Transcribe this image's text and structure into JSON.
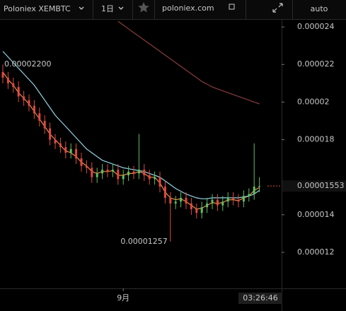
{
  "toolbar": {
    "symbol": "Poloniex XEMBTC",
    "interval": "1日",
    "site": "poloniex.com",
    "scale_mode": "auto"
  },
  "chart_data": {
    "type": "candlestick",
    "categories": [
      null,
      null,
      null,
      null,
      null,
      null,
      null,
      null,
      null,
      null,
      null,
      null,
      null,
      null,
      null,
      null,
      null,
      null,
      null,
      null,
      null,
      null,
      null,
      "9月",
      null,
      null,
      null,
      null,
      null,
      null,
      null,
      null,
      null,
      null,
      null,
      null,
      null,
      null,
      null,
      null,
      null,
      null,
      null,
      null,
      null,
      null,
      null,
      null,
      null,
      null
    ],
    "open": [
      2.16e-05,
      2.13e-05,
      2.1e-05,
      2.08e-05,
      2.03e-05,
      2.01e-05,
      1.98e-05,
      1.94e-05,
      1.9e-05,
      1.86e-05,
      1.8e-05,
      1.78e-05,
      1.76e-05,
      1.73e-05,
      1.75e-05,
      1.7e-05,
      1.66e-05,
      1.65e-05,
      1.6e-05,
      1.62e-05,
      1.64e-05,
      1.63e-05,
      1.64e-05,
      1.59e-05,
      1.61e-05,
      1.63e-05,
      1.62e-05,
      1.64e-05,
      1.61e-05,
      1.59e-05,
      1.6e-05,
      1.55e-05,
      1.49e-05,
      1.46e-05,
      1.47e-05,
      1.49e-05,
      1.46e-05,
      1.43e-05,
      1.41e-05,
      1.44e-05,
      1.46e-05,
      1.48e-05,
      1.45e-05,
      1.47e-05,
      1.49e-05,
      1.48e-05,
      1.47e-05,
      1.5e-05,
      1.51e-05,
      1.55e-05
    ],
    "high": [
      2.2e-05,
      2.16e-05,
      2.13e-05,
      2.11e-05,
      2.06e-05,
      2.04e-05,
      2.01e-05,
      1.97e-05,
      1.93e-05,
      1.89e-05,
      1.83e-05,
      1.81e-05,
      1.79e-05,
      1.78e-05,
      1.78e-05,
      1.73e-05,
      1.69e-05,
      1.68e-05,
      1.65e-05,
      1.67e-05,
      1.67e-05,
      1.67e-05,
      1.67e-05,
      1.64e-05,
      1.66e-05,
      1.66e-05,
      1.83e-05,
      1.67e-05,
      1.64e-05,
      1.63e-05,
      1.63e-05,
      1.58e-05,
      1.52e-05,
      1.5e-05,
      1.52e-05,
      1.52e-05,
      1.49e-05,
      1.46e-05,
      1.47e-05,
      1.49e-05,
      1.51e-05,
      1.51e-05,
      1.5e-05,
      1.52e-05,
      1.52e-05,
      1.51e-05,
      1.53e-05,
      1.54e-05,
      1.78e-05,
      1.6e-05
    ],
    "low": [
      2.1e-05,
      2.07e-05,
      2.05e-05,
      2e-05,
      1.98e-05,
      1.95e-05,
      1.91e-05,
      1.87e-05,
      1.83e-05,
      1.77e-05,
      1.75e-05,
      1.73e-05,
      1.7e-05,
      1.7e-05,
      1.67e-05,
      1.63e-05,
      1.62e-05,
      1.57e-05,
      1.57e-05,
      1.59e-05,
      1.6e-05,
      1.6e-05,
      1.56e-05,
      1.56e-05,
      1.58e-05,
      1.59e-05,
      1.59e-05,
      1.58e-05,
      1.56e-05,
      1.56e-05,
      1.52e-05,
      1.46e-05,
      1.257e-05,
      1.43e-05,
      1.44e-05,
      1.43e-05,
      1.4e-05,
      1.38e-05,
      1.38e-05,
      1.41e-05,
      1.43e-05,
      1.42e-05,
      1.42e-05,
      1.44e-05,
      1.45e-05,
      1.44e-05,
      1.44e-05,
      1.47e-05,
      1.48e-05,
      1.52e-05
    ],
    "close": [
      2.13e-05,
      2.1e-05,
      2.08e-05,
      2.03e-05,
      2.01e-05,
      1.98e-05,
      1.94e-05,
      1.9e-05,
      1.86e-05,
      1.8e-05,
      1.78e-05,
      1.76e-05,
      1.73e-05,
      1.75e-05,
      1.7e-05,
      1.66e-05,
      1.65e-05,
      1.6e-05,
      1.62e-05,
      1.64e-05,
      1.63e-05,
      1.64e-05,
      1.59e-05,
      1.61e-05,
      1.63e-05,
      1.62e-05,
      1.64e-05,
      1.61e-05,
      1.59e-05,
      1.6e-05,
      1.55e-05,
      1.49e-05,
      1.46e-05,
      1.47e-05,
      1.49e-05,
      1.46e-05,
      1.43e-05,
      1.41e-05,
      1.44e-05,
      1.46e-05,
      1.48e-05,
      1.45e-05,
      1.47e-05,
      1.49e-05,
      1.48e-05,
      1.47e-05,
      1.5e-05,
      1.51e-05,
      1.55e-05,
      1.553e-05
    ],
    "up_color": "#5fbf5f",
    "down_color": "#e0493f",
    "series": [
      {
        "color": "#e8914a",
        "values": [
          2.16e-05,
          2.12e-05,
          2.09e-05,
          2.05e-05,
          2.02e-05,
          1.99e-05,
          1.95e-05,
          1.91e-05,
          1.87e-05,
          1.83e-05,
          1.8e-05,
          1.77e-05,
          1.74e-05,
          1.73e-05,
          1.71e-05,
          1.68e-05,
          1.66e-05,
          1.63e-05,
          1.62e-05,
          1.63e-05,
          1.63e-05,
          1.635e-05,
          1.61e-05,
          1.61e-05,
          1.62e-05,
          1.62e-05,
          1.63e-05,
          1.62e-05,
          1.6e-05,
          1.6e-05,
          1.57e-05,
          1.52e-05,
          1.49e-05,
          1.48e-05,
          1.485e-05,
          1.47e-05,
          1.45e-05,
          1.43e-05,
          1.435e-05,
          1.45e-05,
          1.465e-05,
          1.46e-05,
          1.465e-05,
          1.48e-05,
          1.48e-05,
          1.475e-05,
          1.49e-05,
          1.5e-05,
          1.53e-05,
          1.545e-05
        ]
      },
      {
        "color": "#92d4e6",
        "values": [
          2.27e-05,
          2.24e-05,
          2.21e-05,
          2.18e-05,
          2.15e-05,
          2.12e-05,
          2.09e-05,
          2.05e-05,
          2.01e-05,
          1.97e-05,
          1.93e-05,
          1.9e-05,
          1.87e-05,
          1.84e-05,
          1.81e-05,
          1.78e-05,
          1.75e-05,
          1.73e-05,
          1.71e-05,
          1.69e-05,
          1.68e-05,
          1.67e-05,
          1.66e-05,
          1.65e-05,
          1.645e-05,
          1.64e-05,
          1.635e-05,
          1.63e-05,
          1.62e-05,
          1.61e-05,
          1.6e-05,
          1.58e-05,
          1.56e-05,
          1.54e-05,
          1.525e-05,
          1.51e-05,
          1.5e-05,
          1.49e-05,
          1.485e-05,
          1.485e-05,
          1.49e-05,
          1.49e-05,
          1.49e-05,
          1.49e-05,
          1.49e-05,
          1.49e-05,
          1.495e-05,
          1.5e-05,
          1.51e-05,
          1.53e-05
        ]
      },
      {
        "color": "#8a3b3e",
        "values": [
          null,
          null,
          null,
          null,
          null,
          null,
          null,
          null,
          null,
          null,
          null,
          null,
          null,
          null,
          null,
          null,
          null,
          null,
          null,
          null,
          null,
          null,
          2.43e-05,
          2.41e-05,
          2.39e-05,
          2.37e-05,
          2.35e-05,
          2.33e-05,
          2.31e-05,
          2.29e-05,
          2.27e-05,
          2.25e-05,
          2.23e-05,
          2.21e-05,
          2.19e-05,
          2.17e-05,
          2.15e-05,
          2.13e-05,
          2.11e-05,
          2.095e-05,
          2.08e-05,
          2.07e-05,
          2.06e-05,
          2.05e-05,
          2.04e-05,
          2.03e-05,
          2.02e-05,
          2.01e-05,
          2e-05,
          1.99e-05
        ]
      }
    ],
    "ylim": [
      1.008e-05,
      2.438e-05
    ],
    "yticks": [
      1.2e-05,
      1.4e-05,
      1.8e-05,
      2e-05,
      2.2e-05,
      2.4e-05
    ],
    "last_price": 1.553e-05,
    "high_label": {
      "value": 2.2e-05,
      "label": "0.00002200"
    },
    "low_label": 1.257e-05,
    "time_label": "03:26:46"
  }
}
